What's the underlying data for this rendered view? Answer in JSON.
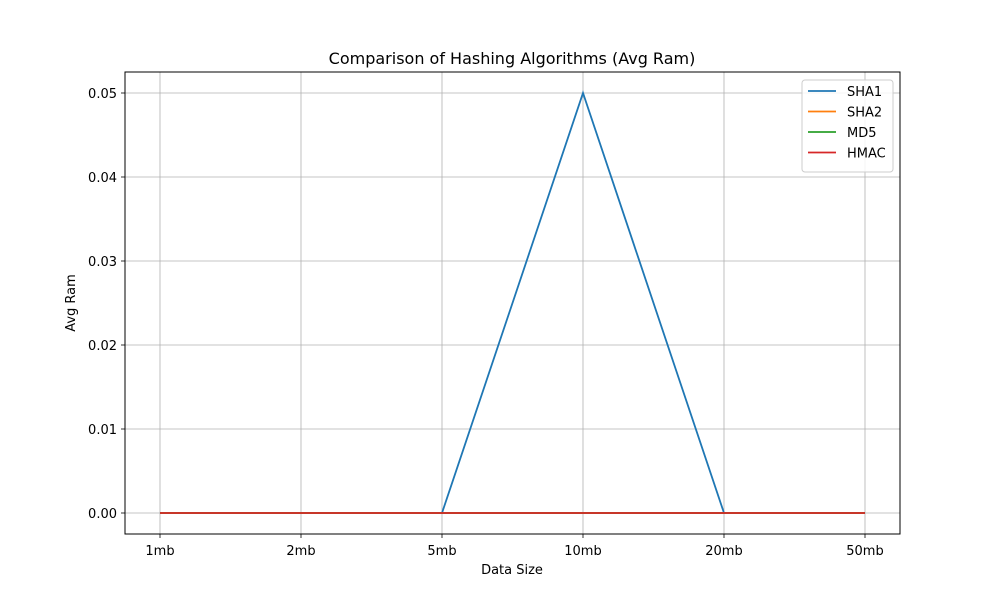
{
  "chart_data": {
    "type": "line",
    "title": "Comparison of Hashing Algorithms (Avg Ram)",
    "xlabel": "Data Size",
    "ylabel": "Avg Ram",
    "categories": [
      "1mb",
      "2mb",
      "5mb",
      "10mb",
      "20mb",
      "50mb"
    ],
    "ylim": [
      -0.0025,
      0.0525
    ],
    "yticks": [
      "0.00",
      "0.01",
      "0.02",
      "0.03",
      "0.04",
      "0.05"
    ],
    "ytick_values": [
      0.0,
      0.01,
      0.02,
      0.03,
      0.04,
      0.05
    ],
    "grid": true,
    "legend_position": "top-right",
    "series": [
      {
        "name": "SHA1",
        "color": "#1f77b4",
        "x": [
          2,
          3,
          4
        ],
        "values": [
          0.0,
          0.05,
          0.0
        ]
      },
      {
        "name": "SHA2",
        "color": "#ff7f0e",
        "x": [
          0,
          1,
          2,
          3,
          4,
          5
        ],
        "values": [
          0,
          0,
          0,
          0,
          0,
          0
        ]
      },
      {
        "name": "MD5",
        "color": "#2ca02c",
        "x": [
          0,
          1,
          2,
          3,
          4,
          5
        ],
        "values": [
          0,
          0,
          0,
          0,
          0,
          0
        ]
      },
      {
        "name": "HMAC",
        "color": "#d62728",
        "x": [
          0,
          1,
          2,
          3,
          4,
          5
        ],
        "values": [
          0,
          0,
          0,
          0,
          0,
          0
        ]
      }
    ]
  }
}
